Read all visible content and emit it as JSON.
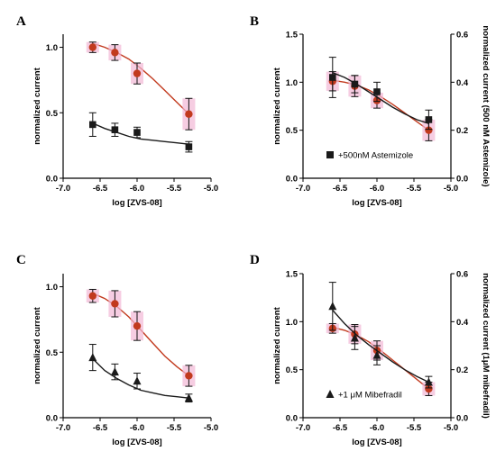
{
  "colors": {
    "control": "#c23a1e",
    "control_halo": "#f2b8d6",
    "treated": "#1a1a1a",
    "axis": "#000000"
  },
  "chart_data": [
    {
      "panel": "A",
      "type": "scatter",
      "xlabel": "log [ZVS-08]",
      "ylabel": "normalized current",
      "xlim": [
        -7.0,
        -5.0
      ],
      "ylim": [
        0.0,
        1.1
      ],
      "xticks": [
        "-7.0",
        "-6.5",
        "-6.0",
        "-5.5",
        "-5.0"
      ],
      "yticks": [
        "0.0",
        "0.5",
        "1.0"
      ],
      "x": [
        -6.6,
        -6.3,
        -6.0,
        -5.3
      ],
      "series": [
        {
          "marker": "circle",
          "color": "#c23a1e",
          "values": [
            1.0,
            0.96,
            0.8,
            0.49
          ],
          "errors": [
            0.04,
            0.06,
            0.08,
            0.12
          ],
          "curve_y": [
            1.03,
            1.0,
            0.96,
            0.91,
            0.84,
            0.76,
            0.67,
            0.58,
            0.49
          ]
        },
        {
          "marker": "square",
          "color": "#1a1a1a",
          "values": [
            0.41,
            0.37,
            0.35,
            0.24
          ],
          "errors": [
            0.09,
            0.05,
            0.04,
            0.04
          ],
          "curve_y": [
            0.42,
            0.38,
            0.35,
            0.32,
            0.3,
            0.29,
            0.28,
            0.27,
            0.26
          ]
        }
      ]
    },
    {
      "panel": "B",
      "type": "scatter",
      "xlabel": "log [ZVS-08]",
      "ylabel": "normalized current",
      "y2label": "normalized current (500 nM Astemizole)",
      "xlim": [
        -7.0,
        -5.0
      ],
      "ylim": [
        0.0,
        1.5
      ],
      "y2lim": [
        0.0,
        0.6
      ],
      "xticks": [
        "-7.0",
        "-6.5",
        "-6.0",
        "-5.5",
        "-5.0"
      ],
      "yticks": [
        "0.0",
        "0.5",
        "1.0",
        "1.5"
      ],
      "y2ticks": [
        "0.0",
        "0.2",
        "0.4",
        "0.6"
      ],
      "legend": [
        {
          "marker": "square",
          "label": "+500nM Astemizole"
        }
      ],
      "x": [
        -6.6,
        -6.3,
        -6.0,
        -5.3
      ],
      "series": [
        {
          "marker": "circle",
          "color": "#c23a1e",
          "values": [
            1.01,
            0.96,
            0.81,
            0.5
          ],
          "errors": [
            0.1,
            0.11,
            0.08,
            0.11
          ],
          "curve_y": [
            1.02,
            1.0,
            0.97,
            0.92,
            0.85,
            0.77,
            0.68,
            0.59,
            0.5
          ]
        },
        {
          "marker": "square",
          "color": "#1a1a1a",
          "values": [
            1.05,
            0.98,
            0.9,
            0.61
          ],
          "errors": [
            0.21,
            0.09,
            0.1,
            0.1
          ],
          "curve_y": [
            1.1,
            1.05,
            0.98,
            0.9,
            0.82,
            0.74,
            0.67,
            0.61,
            0.57
          ]
        }
      ]
    },
    {
      "panel": "C",
      "type": "scatter",
      "xlabel": "log [ZVS-08]",
      "ylabel": "normalized current",
      "xlim": [
        -7.0,
        -5.0
      ],
      "ylim": [
        0.0,
        1.1
      ],
      "xticks": [
        "-7.0",
        "-6.5",
        "-6.0",
        "-5.5",
        "-5.0"
      ],
      "yticks": [
        "0.0",
        "0.5",
        "1.0"
      ],
      "x": [
        -6.6,
        -6.3,
        -6.0,
        -5.3
      ],
      "series": [
        {
          "marker": "circle",
          "color": "#c23a1e",
          "values": [
            0.93,
            0.87,
            0.7,
            0.32
          ],
          "errors": [
            0.05,
            0.1,
            0.11,
            0.08
          ],
          "curve_y": [
            0.95,
            0.91,
            0.85,
            0.77,
            0.67,
            0.57,
            0.47,
            0.39,
            0.32
          ]
        },
        {
          "marker": "triangle",
          "color": "#1a1a1a",
          "values": [
            0.46,
            0.35,
            0.28,
            0.15
          ],
          "errors": [
            0.1,
            0.06,
            0.06,
            0.03
          ],
          "curve_y": [
            0.45,
            0.36,
            0.3,
            0.25,
            0.21,
            0.19,
            0.17,
            0.16,
            0.15
          ]
        }
      ]
    },
    {
      "panel": "D",
      "type": "scatter",
      "xlabel": "log [ZVS-08]",
      "ylabel": "normalized current",
      "y2label": "normalized current (1μM mibefradil)",
      "xlim": [
        -7.0,
        -5.0
      ],
      "ylim": [
        0.0,
        1.5
      ],
      "y2lim": [
        0.0,
        0.6
      ],
      "xticks": [
        "-7.0",
        "-6.5",
        "-6.0",
        "-5.5",
        "-5.0"
      ],
      "yticks": [
        "0.0",
        "0.5",
        "1.0",
        "1.5"
      ],
      "y2ticks": [
        "0.0",
        "0.2",
        "0.4",
        "0.6"
      ],
      "legend": [
        {
          "marker": "triangle",
          "label": "+1 μM Mibefradil"
        }
      ],
      "x": [
        -6.6,
        -6.3,
        -6.0,
        -5.3
      ],
      "series": [
        {
          "marker": "circle",
          "color": "#c23a1e",
          "values": [
            0.93,
            0.87,
            0.7,
            0.3
          ],
          "errors": [
            0.05,
            0.1,
            0.1,
            0.07
          ],
          "curve_y": [
            0.94,
            0.91,
            0.86,
            0.79,
            0.7,
            0.6,
            0.5,
            0.4,
            0.3
          ]
        },
        {
          "marker": "triangle",
          "color": "#1a1a1a",
          "values": [
            1.16,
            0.83,
            0.65,
            0.37
          ],
          "errors": [
            0.25,
            0.12,
            0.1,
            0.06
          ],
          "curve_y": [
            1.12,
            0.98,
            0.86,
            0.76,
            0.67,
            0.58,
            0.5,
            0.43,
            0.37
          ]
        }
      ]
    }
  ]
}
